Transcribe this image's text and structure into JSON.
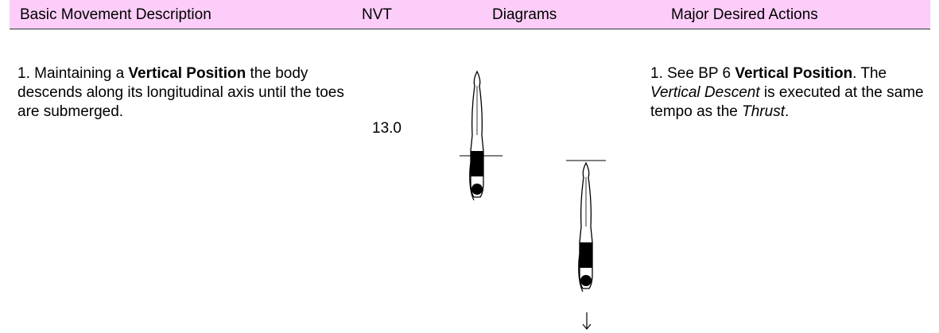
{
  "table": {
    "headers": [
      "Basic Movement Description",
      "NVT",
      "Diagrams",
      "Major Desired Actions"
    ],
    "rows": [
      {
        "description": [
          "1. Maintaining a ",
          "Vertical Position",
          " the body descends along its longitudinal axis until the toes are submerged."
        ],
        "nvt": "13.0",
        "actions": [
          "1. See BP 6 ",
          "Vertical Position",
          ". The ",
          "Vertical Descent",
          " is executed at the same tempo as the ",
          "Thrust",
          "."
        ]
      }
    ]
  }
}
